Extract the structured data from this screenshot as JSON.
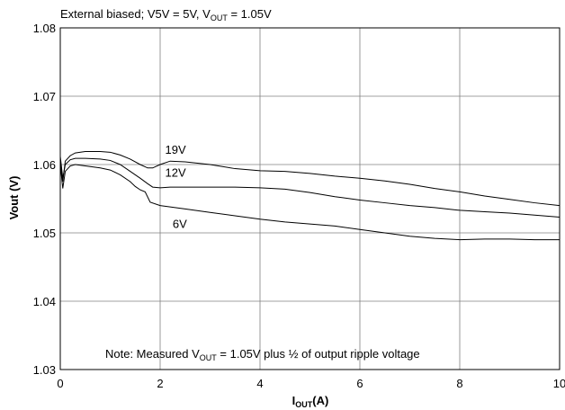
{
  "chart_data": {
    "type": "line",
    "subtitle": {
      "pre": "External biased; V5V = 5V, V",
      "sub": "OUT",
      "post": " = 1.05V"
    },
    "xlabel": {
      "main": "I",
      "sub": "OUT",
      "post": "(A)"
    },
    "ylabel": "Vout (V)",
    "xlim": [
      0,
      10
    ],
    "ylim": [
      1.03,
      1.08
    ],
    "xticks": [
      0,
      2,
      4,
      6,
      8,
      10
    ],
    "xtick_labels": [
      "0",
      "2",
      "4",
      "6",
      "8",
      "10"
    ],
    "yticks": [
      1.03,
      1.04,
      1.05,
      1.06,
      1.07,
      1.08
    ],
    "ytick_labels": [
      "1.03",
      "1.04",
      "1.05",
      "1.06",
      "1.07",
      "1.08"
    ],
    "grid": true,
    "note": {
      "pre": "Note:  Measured V",
      "sub": "OUT",
      "post": " = 1.05V plus ½ of output ripple voltage"
    },
    "series": [
      {
        "name": "19V",
        "label_at": [
          2.1,
          1.0616
        ],
        "x": [
          0,
          0.05,
          0.1,
          0.2,
          0.3,
          0.5,
          0.8,
          1.0,
          1.2,
          1.4,
          1.6,
          1.75,
          1.85,
          2.0,
          2.2,
          2.5,
          3.0,
          3.5,
          4.0,
          4.5,
          5.0,
          5.5,
          6.0,
          6.5,
          7.0,
          7.5,
          8.0,
          8.5,
          9.0,
          9.5,
          10.0
        ],
        "y": [
          1.0605,
          1.0575,
          1.0605,
          1.0613,
          1.0617,
          1.0619,
          1.0619,
          1.0618,
          1.0614,
          1.0608,
          1.06,
          1.0595,
          1.0595,
          1.06,
          1.0605,
          1.0604,
          1.06,
          1.0594,
          1.0591,
          1.059,
          1.0587,
          1.0583,
          1.058,
          1.0576,
          1.0571,
          1.0565,
          1.056,
          1.0554,
          1.0549,
          1.0544,
          1.054
        ]
      },
      {
        "name": "12V",
        "label_at": [
          2.1,
          1.0582
        ],
        "x": [
          0,
          0.05,
          0.1,
          0.2,
          0.3,
          0.5,
          0.8,
          1.0,
          1.2,
          1.4,
          1.6,
          1.75,
          1.85,
          2.0,
          2.2,
          2.5,
          3.0,
          3.5,
          4.0,
          4.5,
          5.0,
          5.5,
          6.0,
          6.5,
          7.0,
          7.5,
          8.0,
          8.5,
          9.0,
          9.5,
          10.0
        ],
        "y": [
          1.0612,
          1.058,
          1.06,
          1.0607,
          1.0609,
          1.0609,
          1.0608,
          1.0606,
          1.06,
          1.059,
          1.058,
          1.0572,
          1.0567,
          1.0566,
          1.0567,
          1.0567,
          1.0567,
          1.0567,
          1.0566,
          1.0564,
          1.0559,
          1.0553,
          1.0548,
          1.0544,
          1.054,
          1.0537,
          1.0533,
          1.0531,
          1.0529,
          1.0526,
          1.0523
        ]
      },
      {
        "name": "6V",
        "label_at": [
          2.25,
          1.0507
        ],
        "x": [
          0,
          0.05,
          0.1,
          0.2,
          0.3,
          0.5,
          0.8,
          1.0,
          1.2,
          1.4,
          1.5,
          1.6,
          1.7,
          1.8,
          2.0,
          2.5,
          3.0,
          3.5,
          4.0,
          4.5,
          5.0,
          5.5,
          6.0,
          6.5,
          7.0,
          7.5,
          8.0,
          8.5,
          9.0,
          9.5,
          10.0
        ],
        "y": [
          1.06,
          1.0565,
          1.059,
          1.0598,
          1.06,
          1.0598,
          1.0595,
          1.0592,
          1.0585,
          1.0575,
          1.0568,
          1.0563,
          1.056,
          1.0545,
          1.054,
          1.0535,
          1.053,
          1.0525,
          1.052,
          1.0516,
          1.0513,
          1.051,
          1.0505,
          1.05,
          1.0495,
          1.0492,
          1.049,
          1.0491,
          1.0491,
          1.049,
          1.049
        ]
      }
    ]
  }
}
